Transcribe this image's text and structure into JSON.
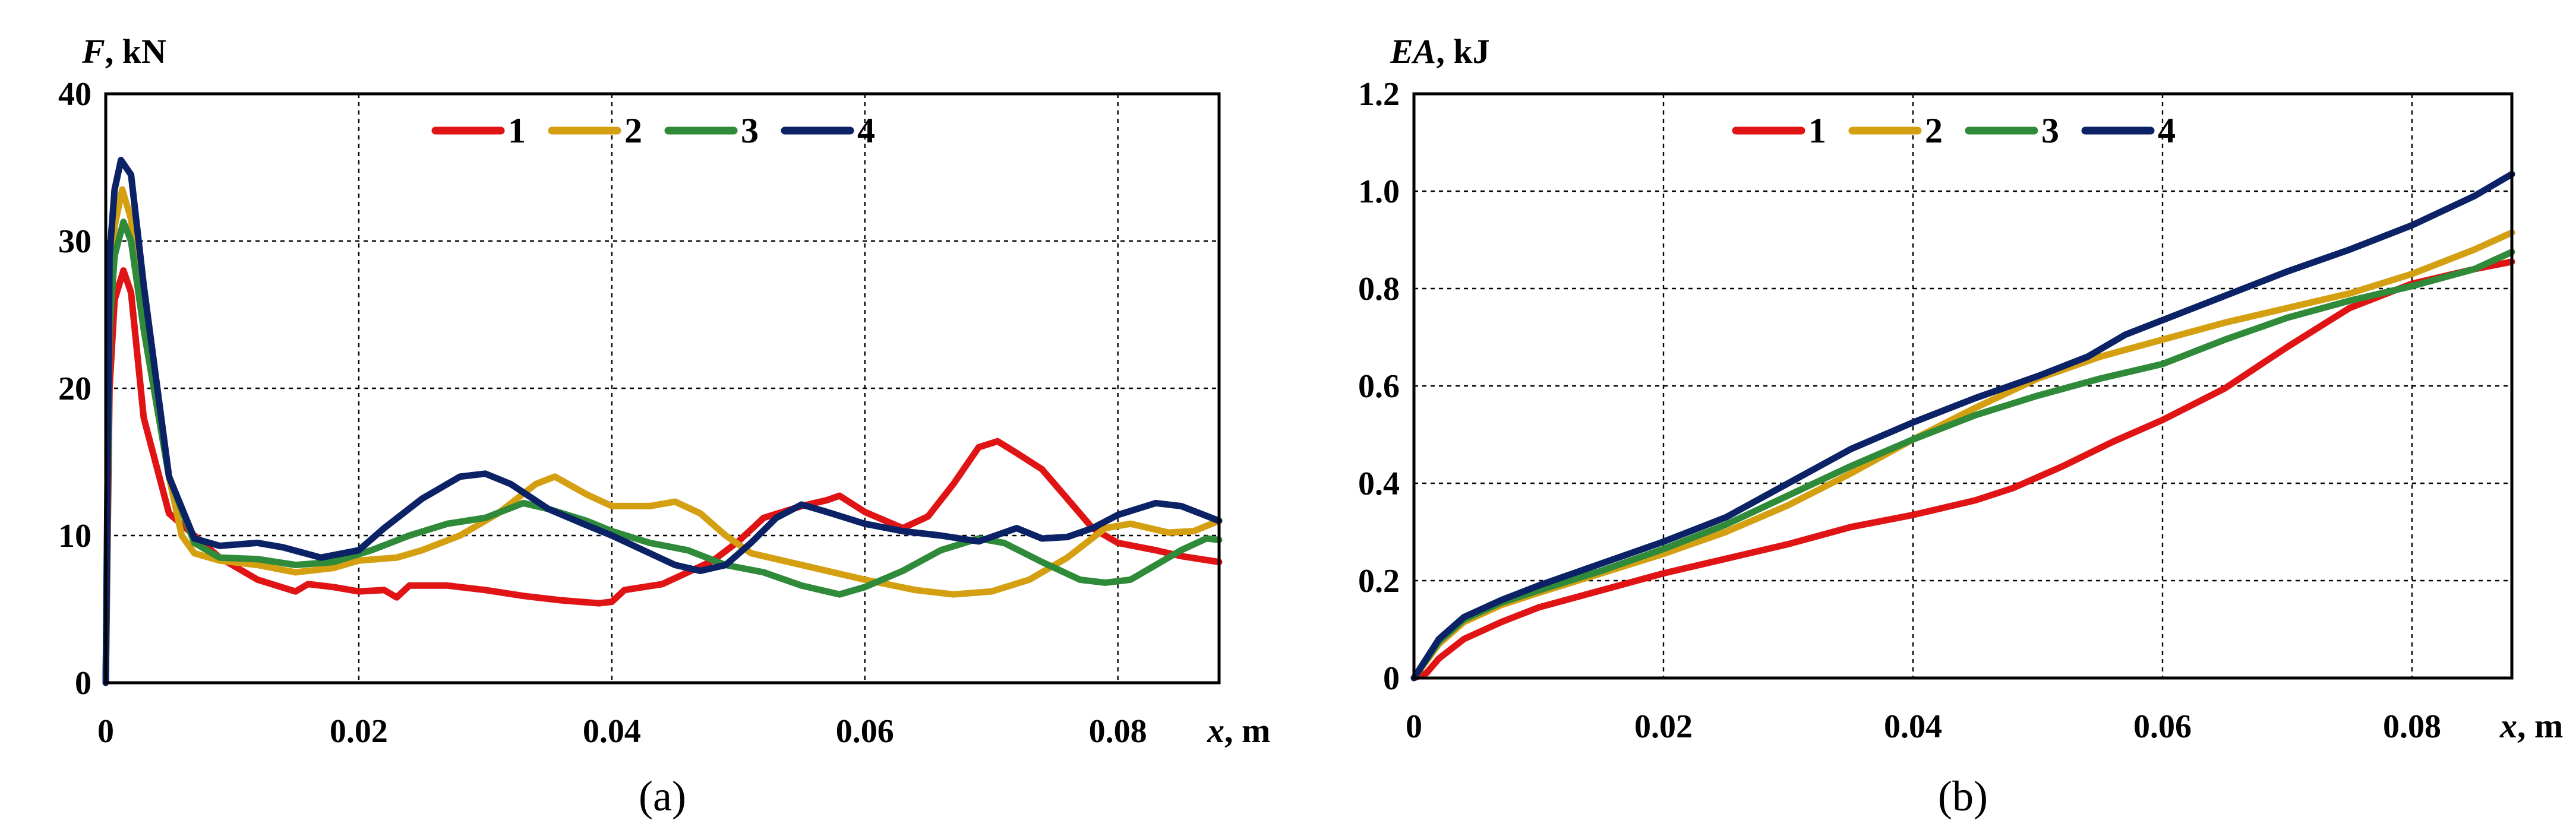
{
  "colors": {
    "series1": "#e01414",
    "series2": "#d4a012",
    "series3": "#2f8a3a",
    "series4": "#0b2266"
  },
  "chart_data": [
    {
      "type": "line",
      "panel_label": "(a)",
      "y_title_var": "F",
      "y_title_unit": ", kN",
      "x_title_var": "x",
      "x_title_unit": ", m",
      "xlim": [
        0,
        0.088
      ],
      "ylim": [
        0,
        40
      ],
      "x_ticks": [
        0,
        0.02,
        0.04,
        0.06,
        0.08
      ],
      "x_tick_labels": [
        "0",
        "0.02",
        "0.04",
        "0.06",
        "0.08"
      ],
      "y_ticks": [
        0,
        10,
        20,
        30,
        40
      ],
      "y_tick_labels": [
        "0",
        "10",
        "20",
        "30",
        "40"
      ],
      "grid": true,
      "legend_position": "top-center",
      "series": [
        {
          "name": "1",
          "color_key": "series1",
          "points": [
            [
              0,
              0
            ],
            [
              0.0003,
              20
            ],
            [
              0.0007,
              26
            ],
            [
              0.0014,
              28
            ],
            [
              0.002,
              26.5
            ],
            [
              0.003,
              18
            ],
            [
              0.005,
              11.5
            ],
            [
              0.007,
              10
            ],
            [
              0.009,
              8.5
            ],
            [
              0.012,
              7
            ],
            [
              0.015,
              6.2
            ],
            [
              0.016,
              6.7
            ],
            [
              0.018,
              6.5
            ],
            [
              0.02,
              6.2
            ],
            [
              0.022,
              6.3
            ],
            [
              0.023,
              5.8
            ],
            [
              0.024,
              6.6
            ],
            [
              0.027,
              6.6
            ],
            [
              0.03,
              6.3
            ],
            [
              0.033,
              5.9
            ],
            [
              0.036,
              5.6
            ],
            [
              0.039,
              5.4
            ],
            [
              0.04,
              5.5
            ],
            [
              0.041,
              6.3
            ],
            [
              0.044,
              6.7
            ],
            [
              0.046,
              7.5
            ],
            [
              0.048,
              8.3
            ],
            [
              0.05,
              9.6
            ],
            [
              0.052,
              11.2
            ],
            [
              0.055,
              12
            ],
            [
              0.057,
              12.4
            ],
            [
              0.058,
              12.7
            ],
            [
              0.06,
              11.6
            ],
            [
              0.063,
              10.5
            ],
            [
              0.065,
              11.3
            ],
            [
              0.067,
              13.5
            ],
            [
              0.069,
              16
            ],
            [
              0.0705,
              16.4
            ],
            [
              0.072,
              15.6
            ],
            [
              0.074,
              14.5
            ],
            [
              0.076,
              12.5
            ],
            [
              0.078,
              10.5
            ],
            [
              0.08,
              9.5
            ],
            [
              0.083,
              9
            ],
            [
              0.085,
              8.6
            ],
            [
              0.088,
              8.2
            ]
          ]
        },
        {
          "name": "2",
          "color_key": "series2",
          "points": [
            [
              0,
              0
            ],
            [
              0.0003,
              26
            ],
            [
              0.0007,
              31
            ],
            [
              0.0013,
              33.5
            ],
            [
              0.002,
              31.5
            ],
            [
              0.003,
              24
            ],
            [
              0.005,
              14
            ],
            [
              0.006,
              10
            ],
            [
              0.007,
              8.8
            ],
            [
              0.009,
              8.3
            ],
            [
              0.012,
              8
            ],
            [
              0.015,
              7.5
            ],
            [
              0.018,
              7.8
            ],
            [
              0.02,
              8.3
            ],
            [
              0.023,
              8.5
            ],
            [
              0.025,
              9
            ],
            [
              0.028,
              10
            ],
            [
              0.031,
              11.5
            ],
            [
              0.034,
              13.5
            ],
            [
              0.0355,
              14
            ],
            [
              0.038,
              12.8
            ],
            [
              0.04,
              12
            ],
            [
              0.043,
              12
            ],
            [
              0.045,
              12.3
            ],
            [
              0.047,
              11.5
            ],
            [
              0.049,
              10
            ],
            [
              0.051,
              8.8
            ],
            [
              0.055,
              8
            ],
            [
              0.06,
              7
            ],
            [
              0.064,
              6.3
            ],
            [
              0.067,
              6
            ],
            [
              0.07,
              6.2
            ],
            [
              0.073,
              7
            ],
            [
              0.076,
              8.5
            ],
            [
              0.079,
              10.5
            ],
            [
              0.081,
              10.8
            ],
            [
              0.084,
              10.2
            ],
            [
              0.086,
              10.3
            ],
            [
              0.088,
              11
            ]
          ]
        },
        {
          "name": "3",
          "color_key": "series3",
          "points": [
            [
              0,
              0
            ],
            [
              0.0003,
              24
            ],
            [
              0.0007,
              29
            ],
            [
              0.0014,
              31.3
            ],
            [
              0.002,
              30
            ],
            [
              0.003,
              24
            ],
            [
              0.005,
              14
            ],
            [
              0.007,
              9.5
            ],
            [
              0.009,
              8.5
            ],
            [
              0.012,
              8.4
            ],
            [
              0.015,
              8
            ],
            [
              0.018,
              8.2
            ],
            [
              0.021,
              9
            ],
            [
              0.024,
              10
            ],
            [
              0.027,
              10.8
            ],
            [
              0.03,
              11.2
            ],
            [
              0.033,
              12.2
            ],
            [
              0.035,
              11.8
            ],
            [
              0.038,
              11
            ],
            [
              0.04,
              10.3
            ],
            [
              0.043,
              9.5
            ],
            [
              0.046,
              9
            ],
            [
              0.049,
              8
            ],
            [
              0.052,
              7.5
            ],
            [
              0.055,
              6.6
            ],
            [
              0.058,
              6
            ],
            [
              0.06,
              6.5
            ],
            [
              0.063,
              7.6
            ],
            [
              0.066,
              9
            ],
            [
              0.069,
              9.8
            ],
            [
              0.071,
              9.5
            ],
            [
              0.074,
              8.2
            ],
            [
              0.077,
              7
            ],
            [
              0.079,
              6.8
            ],
            [
              0.081,
              7
            ],
            [
              0.083,
              8
            ],
            [
              0.085,
              9
            ],
            [
              0.087,
              9.8
            ],
            [
              0.088,
              9.7
            ]
          ]
        },
        {
          "name": "4",
          "color_key": "series4",
          "points": [
            [
              0,
              0
            ],
            [
              0.0003,
              29
            ],
            [
              0.0007,
              33.5
            ],
            [
              0.0012,
              35.5
            ],
            [
              0.002,
              34.5
            ],
            [
              0.003,
              27
            ],
            [
              0.005,
              14
            ],
            [
              0.007,
              9.8
            ],
            [
              0.009,
              9.3
            ],
            [
              0.012,
              9.5
            ],
            [
              0.014,
              9.2
            ],
            [
              0.017,
              8.5
            ],
            [
              0.02,
              9
            ],
            [
              0.022,
              10.5
            ],
            [
              0.025,
              12.5
            ],
            [
              0.028,
              14
            ],
            [
              0.03,
              14.2
            ],
            [
              0.032,
              13.5
            ],
            [
              0.035,
              11.8
            ],
            [
              0.038,
              10.7
            ],
            [
              0.04,
              10
            ],
            [
              0.043,
              8.8
            ],
            [
              0.045,
              8
            ],
            [
              0.047,
              7.6
            ],
            [
              0.049,
              8
            ],
            [
              0.051,
              9.5
            ],
            [
              0.053,
              11.2
            ],
            [
              0.055,
              12.1
            ],
            [
              0.057,
              11.6
            ],
            [
              0.06,
              10.8
            ],
            [
              0.063,
              10.3
            ],
            [
              0.066,
              10
            ],
            [
              0.069,
              9.6
            ],
            [
              0.072,
              10.5
            ],
            [
              0.074,
              9.8
            ],
            [
              0.076,
              9.9
            ],
            [
              0.078,
              10.5
            ],
            [
              0.08,
              11.4
            ],
            [
              0.083,
              12.2
            ],
            [
              0.085,
              12
            ],
            [
              0.088,
              11
            ]
          ]
        }
      ]
    },
    {
      "type": "line",
      "panel_label": "(b)",
      "y_title_var": "EA",
      "y_title_unit": ", kJ",
      "x_title_var": "x",
      "x_title_unit": ", m",
      "xlim": [
        0,
        0.088
      ],
      "ylim": [
        0,
        1.2
      ],
      "x_ticks": [
        0,
        0.02,
        0.04,
        0.06,
        0.08
      ],
      "x_tick_labels": [
        "0",
        "0.02",
        "0.04",
        "0.06",
        "0.08"
      ],
      "y_ticks": [
        0,
        0.2,
        0.4,
        0.6,
        0.8,
        1.0,
        1.2
      ],
      "y_tick_labels": [
        "0",
        "0.2",
        "0.4",
        "0.6",
        "0.8",
        "1.0",
        "1.2"
      ],
      "grid": true,
      "legend_position": "top-center",
      "series": [
        {
          "name": "1",
          "color_key": "series1",
          "points": [
            [
              0,
              0
            ],
            [
              0.001,
              0.01
            ],
            [
              0.002,
              0.04
            ],
            [
              0.004,
              0.08
            ],
            [
              0.007,
              0.115
            ],
            [
              0.01,
              0.145
            ],
            [
              0.015,
              0.18
            ],
            [
              0.02,
              0.215
            ],
            [
              0.025,
              0.245
            ],
            [
              0.03,
              0.275
            ],
            [
              0.035,
              0.31
            ],
            [
              0.04,
              0.335
            ],
            [
              0.045,
              0.365
            ],
            [
              0.048,
              0.39
            ],
            [
              0.052,
              0.435
            ],
            [
              0.056,
              0.485
            ],
            [
              0.06,
              0.53
            ],
            [
              0.065,
              0.595
            ],
            [
              0.07,
              0.68
            ],
            [
              0.075,
              0.76
            ],
            [
              0.08,
              0.81
            ],
            [
              0.085,
              0.84
            ],
            [
              0.088,
              0.855
            ]
          ]
        },
        {
          "name": "2",
          "color_key": "series2",
          "points": [
            [
              0,
              0
            ],
            [
              0.002,
              0.07
            ],
            [
              0.004,
              0.115
            ],
            [
              0.007,
              0.15
            ],
            [
              0.01,
              0.175
            ],
            [
              0.015,
              0.215
            ],
            [
              0.02,
              0.255
            ],
            [
              0.025,
              0.3
            ],
            [
              0.03,
              0.355
            ],
            [
              0.035,
              0.42
            ],
            [
              0.04,
              0.49
            ],
            [
              0.045,
              0.555
            ],
            [
              0.05,
              0.615
            ],
            [
              0.055,
              0.66
            ],
            [
              0.06,
              0.695
            ],
            [
              0.065,
              0.73
            ],
            [
              0.07,
              0.76
            ],
            [
              0.075,
              0.79
            ],
            [
              0.08,
              0.83
            ],
            [
              0.085,
              0.88
            ],
            [
              0.088,
              0.915
            ]
          ]
        },
        {
          "name": "3",
          "color_key": "series3",
          "points": [
            [
              0,
              0
            ],
            [
              0.002,
              0.075
            ],
            [
              0.004,
              0.12
            ],
            [
              0.007,
              0.155
            ],
            [
              0.01,
              0.18
            ],
            [
              0.015,
              0.22
            ],
            [
              0.02,
              0.265
            ],
            [
              0.025,
              0.315
            ],
            [
              0.03,
              0.375
            ],
            [
              0.035,
              0.435
            ],
            [
              0.04,
              0.49
            ],
            [
              0.045,
              0.54
            ],
            [
              0.05,
              0.58
            ],
            [
              0.055,
              0.615
            ],
            [
              0.06,
              0.645
            ],
            [
              0.065,
              0.695
            ],
            [
              0.07,
              0.74
            ],
            [
              0.075,
              0.775
            ],
            [
              0.08,
              0.805
            ],
            [
              0.085,
              0.84
            ],
            [
              0.088,
              0.875
            ]
          ]
        },
        {
          "name": "4",
          "color_key": "series4",
          "points": [
            [
              0,
              0
            ],
            [
              0.002,
              0.08
            ],
            [
              0.004,
              0.125
            ],
            [
              0.007,
              0.16
            ],
            [
              0.01,
              0.19
            ],
            [
              0.015,
              0.235
            ],
            [
              0.02,
              0.28
            ],
            [
              0.025,
              0.33
            ],
            [
              0.03,
              0.4
            ],
            [
              0.035,
              0.47
            ],
            [
              0.04,
              0.525
            ],
            [
              0.045,
              0.575
            ],
            [
              0.05,
              0.62
            ],
            [
              0.054,
              0.66
            ],
            [
              0.057,
              0.705
            ],
            [
              0.06,
              0.735
            ],
            [
              0.065,
              0.785
            ],
            [
              0.07,
              0.835
            ],
            [
              0.075,
              0.88
            ],
            [
              0.08,
              0.93
            ],
            [
              0.085,
              0.99
            ],
            [
              0.088,
              1.035
            ]
          ]
        }
      ]
    }
  ]
}
